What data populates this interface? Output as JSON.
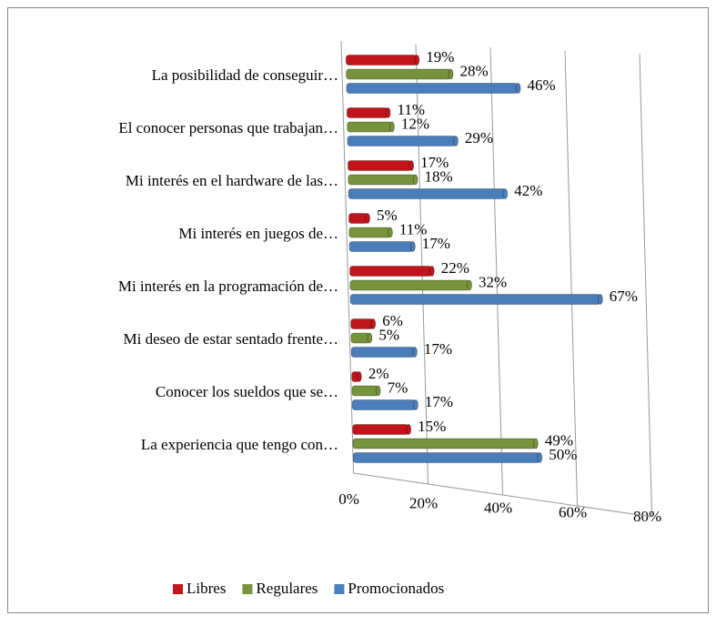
{
  "chart_data": {
    "type": "bar",
    "categories": [
      "La posibilidad de conseguir…",
      "El conocer personas que trabajan…",
      "Mi interés en el hardware de las…",
      "Mi interés en juegos de…",
      "Mi interés en la programación de…",
      "Mi deseo de estar sentado frente…",
      "Conocer los sueldos que se…",
      "La experiencia que tengo con…"
    ],
    "series": [
      {
        "name": "Libres",
        "color": "#c0151b",
        "values": [
          19,
          11,
          17,
          5,
          22,
          6,
          2,
          15
        ],
        "value_labels": [
          "19%",
          "11%",
          "17%",
          "5%",
          "22%",
          "6%",
          "2%",
          "15%"
        ]
      },
      {
        "name": "Regulares",
        "color": "#77933c",
        "values": [
          28,
          12,
          18,
          11,
          32,
          5,
          7,
          49
        ],
        "value_labels": [
          "28%",
          "12%",
          "18%",
          "11%",
          "32%",
          "5%",
          "7%",
          "49%"
        ]
      },
      {
        "name": "Promocionados",
        "color": "#4a7ebb",
        "values": [
          46,
          29,
          42,
          17,
          67,
          17,
          17,
          50
        ],
        "value_labels": [
          "46%",
          "29%",
          "42%",
          "17%",
          "67%",
          "17%",
          "17%",
          "50%"
        ]
      }
    ],
    "xlim": [
      0,
      80
    ],
    "xticks": [
      {
        "value": 0,
        "label": "0%"
      },
      {
        "value": 20,
        "label": "20%"
      },
      {
        "value": 40,
        "label": "40%"
      },
      {
        "value": 60,
        "label": "60%"
      },
      {
        "value": 80,
        "label": "80%"
      }
    ],
    "legend": "bottom"
  }
}
